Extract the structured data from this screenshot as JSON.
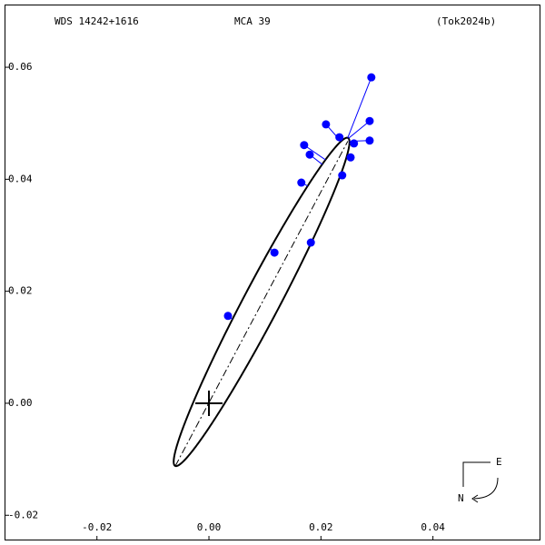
{
  "chart_data": {
    "type": "scatter",
    "header": [
      "WDS 14242+1616",
      "MCA  39",
      "(Tok2024b)"
    ],
    "x": [
      0.0034,
      0.0117,
      0.0182,
      0.0165,
      0.017,
      0.018,
      0.0209,
      0.0233,
      0.0238,
      0.0253,
      0.0259,
      0.0287,
      0.0287,
      0.029
    ],
    "values": [
      0.0156,
      0.0269,
      0.0287,
      0.0394,
      0.0461,
      0.0444,
      0.0498,
      0.0475,
      0.0407,
      0.0439,
      0.0464,
      0.0469,
      0.0504,
      0.0582
    ],
    "color": "#0000ff",
    "orbit": {
      "center": [
        0.0094,
        0.0181
      ],
      "semi_axes": [
        0.0331,
        0.0032
      ],
      "angle_deg": 62.2
    },
    "node_line": [
      [
        -0.006,
        -0.0112
      ],
      [
        0.0248,
        0.0468
      ]
    ],
    "xlim": [
      -0.0365,
      0.0592
    ],
    "ylim": [
      -0.0245,
      0.0712
    ],
    "xticks": [
      -0.02,
      {
        "value": 0,
        "label": "0.00"
      },
      0.02,
      0.04
    ],
    "yticks": [
      0.06,
      0.04,
      0.02,
      {
        "value": 0,
        "label": "0.00"
      },
      -0.02
    ],
    "compass": [
      "E",
      "N"
    ]
  }
}
